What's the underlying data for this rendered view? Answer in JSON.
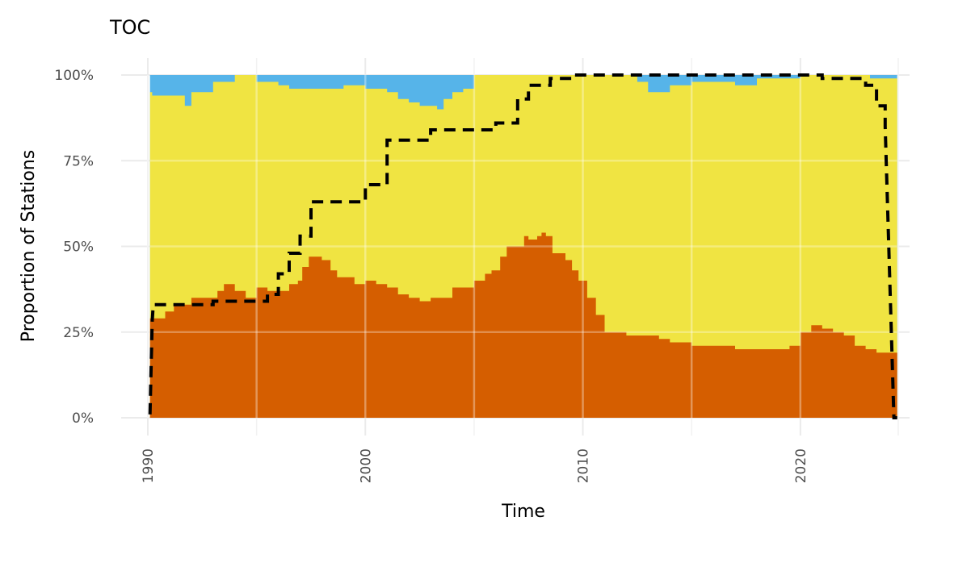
{
  "chart_data": {
    "type": "area",
    "title": "TOC",
    "xlabel": "Time",
    "ylabel": "Proportion of Stations",
    "xlim": [
      1990,
      2024.5
    ],
    "ylim": [
      0,
      1
    ],
    "x_ticks": [
      1990,
      2000,
      2010,
      2020
    ],
    "x_tick_labels": [
      "1990",
      "2000",
      "2010",
      "2020"
    ],
    "y_ticks": [
      0,
      0.25,
      0.5,
      0.75,
      1.0
    ],
    "y_tick_labels": [
      "0%",
      "25%",
      "50%",
      "75%",
      "100%"
    ],
    "grid": true,
    "legend": "none",
    "colors": {
      "bottom": "#D55E00",
      "middle": "#F0E442",
      "top": "#56B4E9",
      "line": "#000000",
      "grid": "#ebebeb"
    },
    "bottom_band": {
      "x": [
        1990.1,
        1990.2,
        1990.8,
        1991.2,
        1991.5,
        1992.0,
        1992.5,
        1993.2,
        1993.5,
        1994.0,
        1994.5,
        1995.0,
        1995.5,
        1996.0,
        1996.5,
        1996.9,
        1997.1,
        1997.4,
        1997.8,
        1998.0,
        1998.4,
        1998.7,
        1999.0,
        1999.5,
        2000.0,
        2000.5,
        2001.0,
        2001.5,
        2002.0,
        2002.5,
        2003.0,
        2003.5,
        2004.0,
        2004.5,
        2005.0,
        2005.5,
        2005.8,
        2006.2,
        2006.5,
        2007.0,
        2007.3,
        2007.5,
        2007.9,
        2008.1,
        2008.3,
        2008.6,
        2008.9,
        2009.2,
        2009.5,
        2009.8,
        2010.2,
        2010.6,
        2011.0,
        2012.0,
        2012.5,
        2013.5,
        2014.0,
        2015.0,
        2016.0,
        2017.0,
        2018.0,
        2019.0,
        2019.5,
        2020.0,
        2020.5,
        2021.0,
        2021.5,
        2022.0,
        2022.5,
        2023.0,
        2023.5,
        2024.0,
        2024.45
      ],
      "y": [
        0.29,
        0.29,
        0.31,
        0.33,
        0.33,
        0.35,
        0.35,
        0.37,
        0.39,
        0.37,
        0.35,
        0.38,
        0.37,
        0.37,
        0.39,
        0.4,
        0.44,
        0.47,
        0.47,
        0.46,
        0.43,
        0.41,
        0.41,
        0.39,
        0.4,
        0.39,
        0.38,
        0.36,
        0.35,
        0.34,
        0.35,
        0.35,
        0.38,
        0.38,
        0.4,
        0.42,
        0.43,
        0.47,
        0.5,
        0.5,
        0.53,
        0.52,
        0.53,
        0.54,
        0.53,
        0.48,
        0.48,
        0.46,
        0.43,
        0.4,
        0.35,
        0.3,
        0.25,
        0.24,
        0.24,
        0.23,
        0.22,
        0.21,
        0.21,
        0.2,
        0.2,
        0.2,
        0.21,
        0.25,
        0.27,
        0.26,
        0.25,
        0.24,
        0.21,
        0.2,
        0.19,
        0.19,
        0.19
      ]
    },
    "middle_band_upper": {
      "x": [
        1990.1,
        1990.2,
        1991.0,
        1991.5,
        1991.7,
        1992.0,
        1993.0,
        1994.0,
        1994.5,
        1995.0,
        1995.5,
        1996.0,
        1996.5,
        1997.5,
        1998.5,
        1999.0,
        2000.0,
        2000.5,
        2001.0,
        2001.5,
        2002.0,
        2002.5,
        2003.0,
        2003.3,
        2003.6,
        2004.0,
        2004.5,
        2005.0,
        2006.0,
        2009.0,
        2010.0,
        2012.0,
        2012.5,
        2013.0,
        2014.0,
        2015.0,
        2016.0,
        2017.0,
        2018.0,
        2020.0,
        2022.0,
        2023.2,
        2024.45
      ],
      "y": [
        0.95,
        0.94,
        0.94,
        0.94,
        0.91,
        0.95,
        0.98,
        1.0,
        1.0,
        0.98,
        0.98,
        0.97,
        0.96,
        0.96,
        0.96,
        0.97,
        0.96,
        0.96,
        0.95,
        0.93,
        0.92,
        0.91,
        0.91,
        0.9,
        0.93,
        0.95,
        0.96,
        1.0,
        1.0,
        1.0,
        1.0,
        1.0,
        0.98,
        0.95,
        0.97,
        0.98,
        0.98,
        0.97,
        0.99,
        1.0,
        1.0,
        0.99,
        1.0
      ]
    },
    "dashed_line": {
      "x": [
        1990.1,
        1990.2,
        1990.25,
        1991.5,
        1991.5,
        1993.0,
        1993.0,
        1994.5,
        1994.5,
        1995.5,
        1995.5,
        1996.0,
        1996.0,
        1996.5,
        1996.5,
        1997.0,
        1997.0,
        1997.5,
        1997.5,
        1998.0,
        1998.0,
        2000.0,
        2000.0,
        2001.0,
        2001.0,
        2003.0,
        2003.0,
        2006.0,
        2006.0,
        2007.0,
        2007.0,
        2007.5,
        2007.5,
        2008.5,
        2008.5,
        2009.5,
        2009.5,
        2021.0,
        2021.0,
        2023.0,
        2023.0,
        2023.5,
        2023.5,
        2023.9,
        2023.9,
        2024.3,
        2024.45
      ],
      "y": [
        0.01,
        0.28,
        0.33,
        0.33,
        0.33,
        0.33,
        0.34,
        0.34,
        0.34,
        0.34,
        0.36,
        0.36,
        0.42,
        0.42,
        0.48,
        0.48,
        0.53,
        0.53,
        0.63,
        0.63,
        0.63,
        0.63,
        0.68,
        0.68,
        0.81,
        0.81,
        0.84,
        0.84,
        0.86,
        0.86,
        0.93,
        0.93,
        0.97,
        0.97,
        0.99,
        0.99,
        1.0,
        1.0,
        0.99,
        0.99,
        0.97,
        0.97,
        0.91,
        0.91,
        0.85,
        0.0,
        0.0
      ]
    }
  }
}
